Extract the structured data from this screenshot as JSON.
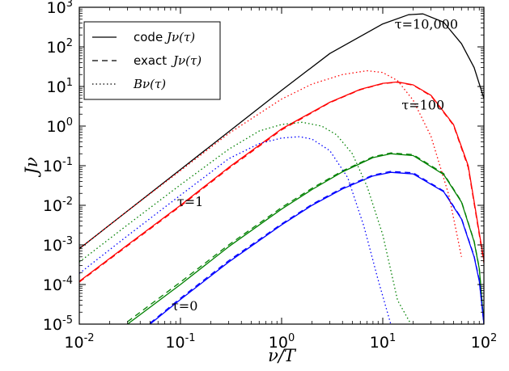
{
  "chart_data": {
    "type": "line",
    "xlabel": "ν/T",
    "ylabel": "Jν",
    "xscale": "log",
    "yscale": "log",
    "xlim": [
      0.01,
      100
    ],
    "ylim": [
      1e-05,
      1000
    ],
    "grid": false,
    "legend_position": "top-left",
    "x_ticks": [
      {
        "base": "10",
        "exp": "-2",
        "value": 0.01
      },
      {
        "base": "10",
        "exp": "-1",
        "value": 0.1
      },
      {
        "base": "10",
        "exp": "0",
        "value": 1
      },
      {
        "base": "10",
        "exp": "1",
        "value": 10
      },
      {
        "base": "10",
        "exp": "2",
        "value": 100
      }
    ],
    "y_ticks": [
      {
        "base": "10",
        "exp": "-5",
        "value": 1e-05
      },
      {
        "base": "10",
        "exp": "-4",
        "value": 0.0001
      },
      {
        "base": "10",
        "exp": "-3",
        "value": 0.001
      },
      {
        "base": "10",
        "exp": "-2",
        "value": 0.01
      },
      {
        "base": "10",
        "exp": "-1",
        "value": 0.1
      },
      {
        "base": "10",
        "exp": "0",
        "value": 1
      },
      {
        "base": "10",
        "exp": "1",
        "value": 10
      },
      {
        "base": "10",
        "exp": "2",
        "value": 100
      },
      {
        "base": "10",
        "exp": "3",
        "value": 1000
      }
    ],
    "legend": [
      {
        "label": "code",
        "math": "Jν(τ)",
        "style": "solid"
      },
      {
        "label": "exact",
        "math": "Jν(τ)",
        "style": "dashed"
      },
      {
        "label": "",
        "math": "Bν(τ)",
        "style": "dotted"
      }
    ],
    "annotations": [
      {
        "text": "τ=10,000",
        "x": 27,
        "y": 290
      },
      {
        "text": "τ=100",
        "x": 25,
        "y": 2.6
      },
      {
        "text": "τ=1",
        "x": 0.125,
        "y": 0.0095
      },
      {
        "text": "τ=0",
        "x": 0.11,
        "y": 2.2e-05
      }
    ],
    "series": [
      {
        "name": "code Jν(τ) τ=10,000",
        "style": "solid",
        "color": "#000000",
        "x": [
          0.01,
          0.03,
          0.1,
          0.3,
          1,
          3,
          10,
          18,
          25,
          40,
          60,
          80,
          100
        ],
        "y": [
          0.0008,
          0.0072,
          0.08,
          0.72,
          8,
          68,
          380,
          650,
          680,
          420,
          120,
          30,
          5
        ]
      },
      {
        "name": "code Jν(τ) τ=100",
        "style": "solid",
        "color": "#ff0000",
        "x": [
          0.01,
          0.03,
          0.1,
          0.3,
          1,
          3,
          6,
          10,
          14,
          20,
          30,
          50,
          70,
          90,
          100
        ],
        "y": [
          0.00012,
          0.001,
          0.01,
          0.09,
          0.85,
          4,
          8.5,
          12,
          13,
          11,
          6,
          1.1,
          0.1,
          0.002,
          0.0004
        ]
      },
      {
        "name": "exact Jν(τ) τ=100",
        "style": "dashed",
        "color": "#ff0000",
        "x": [
          0.01,
          0.03,
          0.1,
          0.3,
          1,
          3,
          6,
          10,
          14,
          20,
          30,
          50,
          70,
          90,
          100
        ],
        "y": [
          0.000115,
          0.00095,
          0.0095,
          0.085,
          0.8,
          3.9,
          8.3,
          11.8,
          12.8,
          10.8,
          5.8,
          1.05,
          0.09,
          0.0018,
          0.00035
        ]
      },
      {
        "name": "code Jν(τ) τ=1",
        "style": "solid",
        "color": "#008000",
        "x": [
          0.03,
          0.1,
          0.3,
          1,
          2,
          4,
          8,
          12,
          20,
          40,
          60,
          80,
          90,
          100
        ],
        "y": [
          1e-05,
          0.0001,
          0.0009,
          0.008,
          0.025,
          0.07,
          0.16,
          0.2,
          0.18,
          0.06,
          0.012,
          0.0012,
          0.00025,
          1e-05
        ]
      },
      {
        "name": "exact Jν(τ) τ=1",
        "style": "dashed",
        "color": "#008000",
        "x": [
          0.03,
          0.1,
          0.3,
          1,
          2,
          4,
          8,
          12,
          20,
          40,
          60,
          80,
          90,
          100
        ],
        "y": [
          1.15e-05,
          0.000115,
          0.001,
          0.0088,
          0.027,
          0.074,
          0.168,
          0.21,
          0.19,
          0.063,
          0.0125,
          0.00125,
          0.00026,
          1e-05
        ]
      },
      {
        "name": "code Jν(τ) τ=0",
        "style": "solid",
        "color": "#0000ff",
        "x": [
          0.05,
          0.1,
          0.3,
          1,
          2,
          4,
          8,
          12,
          20,
          40,
          60,
          80,
          90,
          100
        ],
        "y": [
          1e-05,
          4.2e-05,
          0.00037,
          0.0032,
          0.01,
          0.026,
          0.055,
          0.068,
          0.062,
          0.022,
          0.0045,
          0.0005,
          0.00012,
          1e-05
        ]
      },
      {
        "name": "exact Jν(τ) τ=0",
        "style": "dashed",
        "color": "#0000ff",
        "x": [
          0.05,
          0.1,
          0.3,
          1,
          2,
          4,
          8,
          12,
          20,
          40,
          60,
          80,
          90,
          100
        ],
        "y": [
          1.06e-05,
          4.5e-05,
          0.0004,
          0.0034,
          0.0106,
          0.0275,
          0.058,
          0.072,
          0.066,
          0.023,
          0.0047,
          0.00052,
          0.00013,
          1e-05
        ]
      },
      {
        "name": "Bν(τ) τ=100",
        "style": "dotted",
        "color": "#ff0000",
        "x": [
          0.01,
          0.03,
          0.1,
          0.3,
          1,
          2,
          4,
          7,
          10,
          14,
          20,
          30,
          45,
          60
        ],
        "y": [
          0.0008,
          0.0072,
          0.075,
          0.65,
          4.8,
          11.5,
          20,
          25,
          22.5,
          14,
          4.5,
          0.55,
          0.018,
          0.0005
        ]
      },
      {
        "name": "Bν(τ) τ=1",
        "style": "dotted",
        "color": "#008000",
        "x": [
          0.01,
          0.03,
          0.1,
          0.3,
          0.6,
          1,
          1.6,
          2.5,
          3.5,
          5,
          7,
          10,
          14,
          19
        ],
        "y": [
          0.00037,
          0.0032,
          0.033,
          0.26,
          0.75,
          1.1,
          1.25,
          1.0,
          0.6,
          0.2,
          0.03,
          0.0018,
          4e-05,
          1e-05
        ]
      },
      {
        "name": "Bν(τ) τ=0",
        "style": "dotted",
        "color": "#0000ff",
        "x": [
          0.01,
          0.03,
          0.1,
          0.3,
          0.6,
          1,
          1.5,
          2,
          3,
          4.5,
          6.5,
          9,
          12,
          14
        ],
        "y": [
          0.00019,
          0.0017,
          0.018,
          0.15,
          0.36,
          0.5,
          0.54,
          0.47,
          0.24,
          0.05,
          0.003,
          0.00013,
          1e-05,
          5e-06
        ]
      }
    ]
  }
}
